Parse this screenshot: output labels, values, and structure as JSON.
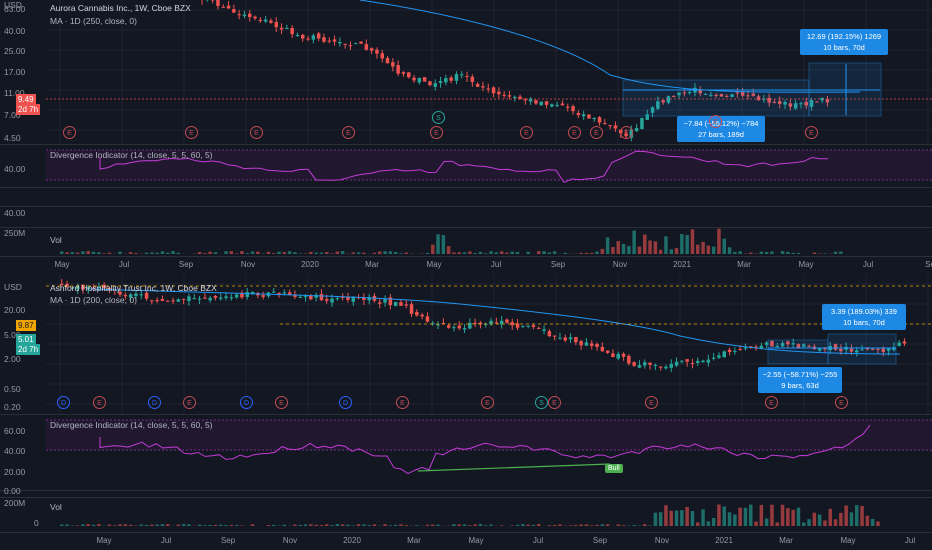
{
  "colors": {
    "up": "#26a69a",
    "down": "#ef5350",
    "ma": "#2196f3",
    "osc": "#c43bd6",
    "bg": "#131722",
    "measure": "#1e88e5",
    "bull": "#4caf50"
  },
  "top": {
    "currency": "USD",
    "title": "Aurora Cannabis Inc., 1W, Cboe BZX",
    "ma_label": "MA · 1D (250, close, 0)",
    "price_ticks": [
      "63.00",
      "40.00",
      "25.00",
      "17.00",
      "11.00",
      "7.00",
      "4.50"
    ],
    "last_price": "9.49",
    "last_time": "2d 7h",
    "divergence_label": "Divergence Indicator (14, close, 5, 5, 60, 5)",
    "div_ticks": [
      "40.00"
    ],
    "sub_ticks": [
      "40.00"
    ],
    "vol_label": "Vol",
    "vol_ticks": [
      "250M"
    ],
    "measure_up": {
      "line1": "12.69 (192.15%) 1269",
      "line2": "10 bars, 70d"
    },
    "measure_down": {
      "line1": "−7.84 (−55.12%) −784",
      "line2": "27 bars, 189d"
    },
    "events": [
      "E",
      "E",
      "E",
      "E",
      "E",
      "E",
      "E",
      "E",
      "E",
      "E",
      "E"
    ],
    "split_label": "S",
    "x_labels": [
      "May",
      "Jul",
      "Sep",
      "Nov",
      "2020",
      "Mar",
      "May",
      "Jul",
      "Sep",
      "Nov",
      "2021",
      "Mar",
      "May",
      "Jul",
      "Se"
    ]
  },
  "bottom": {
    "currency": "USD",
    "title": "Ashford Hospitality Trust Inc, 1W, Cboe BZX",
    "ma_label": "MA · 1D (200, close, 0)",
    "price_ticks": [
      "20.00",
      "5.00",
      "2.00",
      "0.50",
      "0.20"
    ],
    "tag1": "9.87",
    "last_price": "5.01",
    "last_time": "2d 7h",
    "measure_up": {
      "line1": "3.39 (189.03%) 339",
      "line2": "10 bars, 70d"
    },
    "measure_down": {
      "line1": "−2.55 (−58.71%) −255",
      "line2": "9 bars, 63d"
    },
    "divergence_label": "Divergence Indicator (14, close, 5, 5, 60, 5)",
    "div_ticks": [
      "60.00",
      "40.00",
      "20.00"
    ],
    "sub_ticks": [
      "0.00"
    ],
    "vol_label": "Vol",
    "vol_ticks": [
      "200M",
      "0"
    ],
    "bull_label": "Bull",
    "x_labels": [
      "May",
      "Jul",
      "Sep",
      "Nov",
      "2020",
      "Mar",
      "May",
      "Jul",
      "Sep",
      "Nov",
      "2021",
      "Mar",
      "May",
      "Jul"
    ]
  }
}
